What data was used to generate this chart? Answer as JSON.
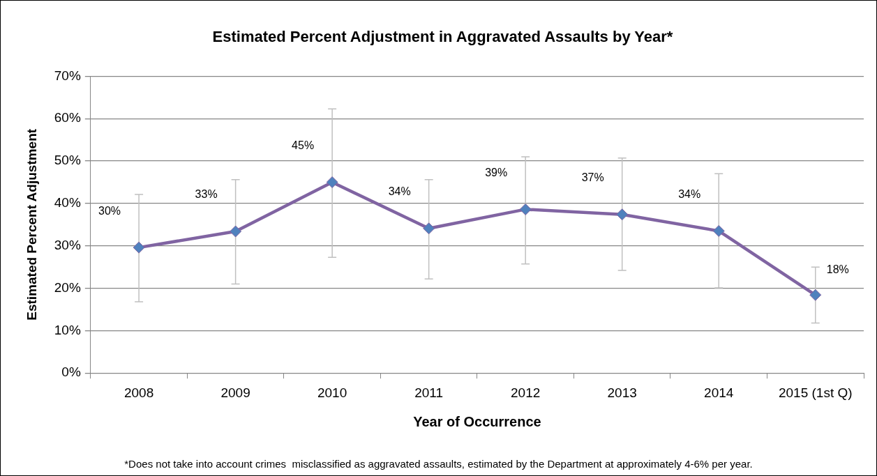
{
  "chart_data": {
    "type": "line",
    "title": "Estimated Percent Adjustment in Aggravated Assaults by Year*",
    "xlabel": "Year of Occurrence",
    "ylabel": "Estimated Percent Adjustment",
    "categories": [
      "2008",
      "2009",
      "2010",
      "2011",
      "2012",
      "2013",
      "2014",
      "2015 (1st Q)"
    ],
    "series": [
      {
        "color": "#8064a2",
        "values": [
          29.6,
          33.4,
          45.0,
          34.1,
          38.6,
          37.4,
          33.5,
          18.4
        ],
        "errors": [
          [
            16.8,
            42.1
          ],
          [
            21.0,
            45.6
          ],
          [
            27.3,
            62.3
          ],
          [
            22.2,
            45.6
          ],
          [
            25.7,
            51.0
          ],
          [
            24.2,
            50.7
          ],
          [
            20.1,
            47.0
          ],
          [
            11.8,
            25.0
          ]
        ],
        "value_labels": [
          "30%",
          "33%",
          "45%",
          "34%",
          "39%",
          "37%",
          "34%",
          "18%"
        ]
      }
    ],
    "ylim": [
      0,
      70
    ],
    "yticks": [
      {
        "value": 0,
        "label": "0%"
      },
      {
        "value": 10,
        "label": "10%"
      },
      {
        "value": 20,
        "label": "20%"
      },
      {
        "value": 30,
        "label": "30%"
      },
      {
        "value": 40,
        "label": "40%"
      },
      {
        "value": 50,
        "label": "50%"
      },
      {
        "value": 60,
        "label": "60%"
      },
      {
        "value": 70,
        "label": "70%"
      }
    ],
    "grid": "y",
    "legend": false,
    "marker": "diamond",
    "line_style": "solid",
    "annotations": [
      "*Does not take into account crimes  misclassified as aggravated assaults, estimated by the Department at approximately 4-6% per year."
    ]
  }
}
